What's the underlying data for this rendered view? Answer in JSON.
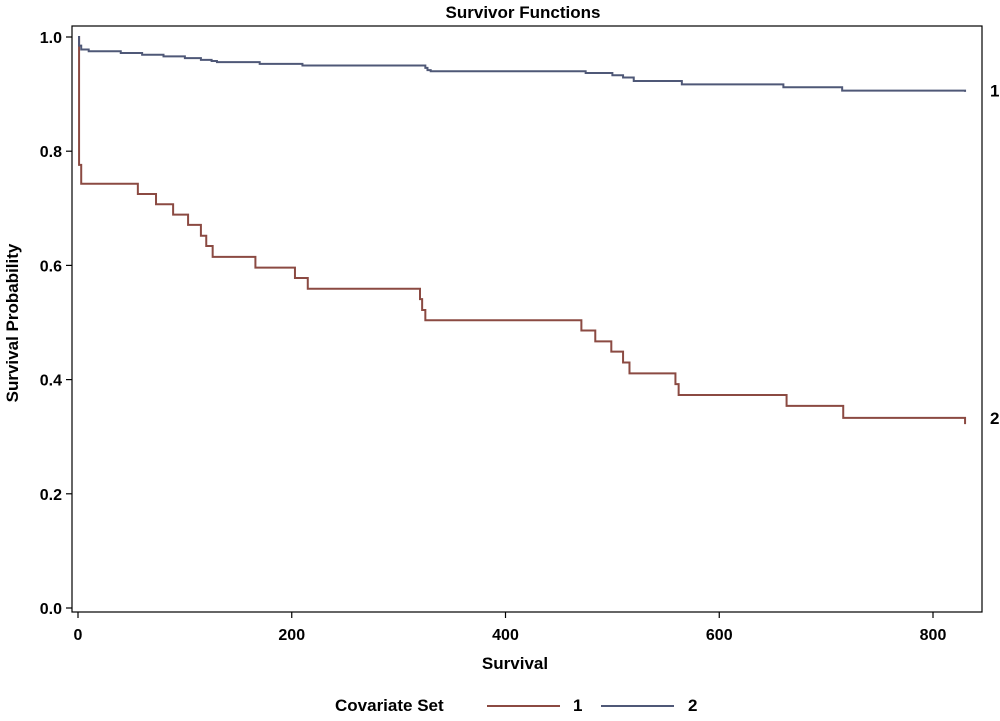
{
  "chart_data": {
    "type": "line",
    "subtype": "step",
    "title": "Survivor Functions",
    "xlabel": "Survival",
    "ylabel": "Survival Probability",
    "xlim": [
      0,
      845
    ],
    "ylim": [
      0,
      1.0
    ],
    "x_ticks": [
      0,
      200,
      400,
      600,
      800
    ],
    "y_ticks": [
      0.0,
      0.2,
      0.4,
      0.6,
      0.8,
      1.0
    ],
    "x_tick_labels": [
      "0",
      "200",
      "400",
      "600",
      "800"
    ],
    "y_tick_labels": [
      "0.0",
      "0.2",
      "0.4",
      "0.6",
      "0.8",
      "1.0"
    ],
    "grid": false,
    "legend": {
      "title": "Covariate Set",
      "placement": "bottom"
    },
    "series": [
      {
        "name": "1",
        "color": "#8b4a42",
        "end_label": "2",
        "x": [
          0,
          1,
          1,
          3,
          3,
          56,
          56,
          73,
          73,
          89,
          89,
          103,
          103,
          115,
          115,
          120,
          120,
          126,
          126,
          166,
          166,
          203,
          203,
          215,
          215,
          320,
          320,
          322,
          322,
          325,
          325,
          471,
          471,
          484,
          484,
          499,
          499,
          510,
          510,
          516,
          516,
          559,
          559,
          562,
          562,
          663,
          663,
          716,
          716,
          830,
          830
        ],
        "y": [
          1.0,
          1.0,
          0.776,
          0.776,
          0.743,
          0.743,
          0.725,
          0.725,
          0.707,
          0.707,
          0.689,
          0.689,
          0.671,
          0.671,
          0.652,
          0.652,
          0.634,
          0.634,
          0.615,
          0.615,
          0.596,
          0.596,
          0.578,
          0.578,
          0.559,
          0.559,
          0.541,
          0.541,
          0.522,
          0.522,
          0.504,
          0.504,
          0.486,
          0.486,
          0.467,
          0.467,
          0.449,
          0.449,
          0.43,
          0.43,
          0.411,
          0.411,
          0.392,
          0.392,
          0.373,
          0.373,
          0.354,
          0.354,
          0.333,
          0.333,
          0.322
        ]
      },
      {
        "name": "2",
        "color": "#4f5877",
        "end_label": "1",
        "x": [
          0,
          1,
          1,
          3,
          3,
          10,
          10,
          40,
          40,
          60,
          60,
          80,
          80,
          100,
          100,
          115,
          115,
          125,
          125,
          130,
          130,
          170,
          170,
          210,
          210,
          325,
          325,
          327,
          327,
          330,
          330,
          475,
          475,
          500,
          500,
          510,
          510,
          520,
          520,
          565,
          565,
          660,
          660,
          715,
          715,
          830,
          830
        ],
        "y": [
          1.0,
          1.0,
          0.985,
          0.985,
          0.978,
          0.978,
          0.975,
          0.975,
          0.972,
          0.972,
          0.969,
          0.969,
          0.966,
          0.966,
          0.963,
          0.963,
          0.96,
          0.96,
          0.958,
          0.958,
          0.956,
          0.956,
          0.953,
          0.953,
          0.95,
          0.95,
          0.946,
          0.946,
          0.942,
          0.942,
          0.94,
          0.94,
          0.937,
          0.937,
          0.933,
          0.933,
          0.929,
          0.929,
          0.923,
          0.923,
          0.917,
          0.917,
          0.912,
          0.912,
          0.906,
          0.906,
          0.904
        ]
      }
    ]
  }
}
